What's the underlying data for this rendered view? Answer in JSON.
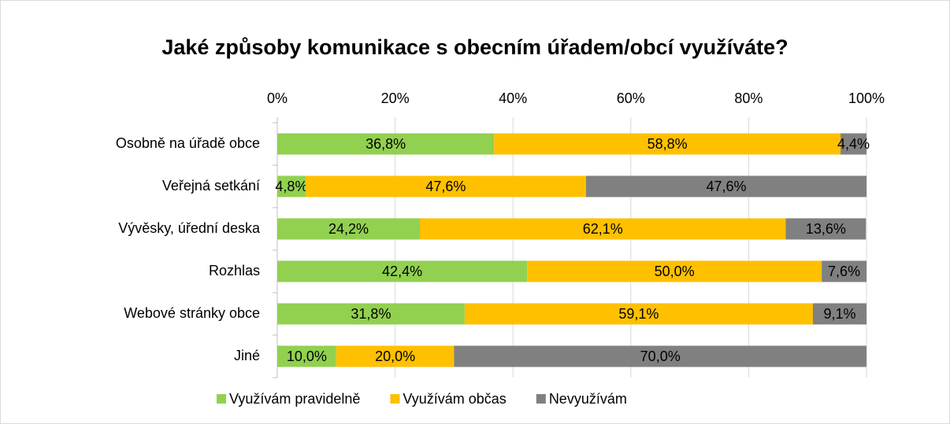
{
  "chart_data": {
    "type": "stacked_barh",
    "title": "Jaké způsoby komunikace s obecním úřadem/obcí využíváte?",
    "categories": [
      "Osobně na úřadě obce",
      "Veřejná setkání",
      "Vývěsky, úřední deska",
      "Rozhlas",
      "Webové stránky obce",
      "Jiné"
    ],
    "series": [
      {
        "name": "Využívám pravidelně",
        "color": "#92d050",
        "values": [
          36.8,
          4.8,
          24.2,
          42.4,
          31.8,
          10.0
        ],
        "value_labels": [
          "36,8%",
          "4,8%",
          "24,2%",
          "42,4%",
          "31,8%",
          "10,0%"
        ]
      },
      {
        "name": "Využívám občas",
        "color": "#ffc000",
        "values": [
          58.8,
          47.6,
          62.1,
          50.0,
          59.1,
          20.0
        ],
        "value_labels": [
          "58,8%",
          "47,6%",
          "62,1%",
          "50,0%",
          "59,1%",
          "20,0%"
        ]
      },
      {
        "name": "Nevyužívám",
        "color": "#808080",
        "values": [
          4.4,
          47.6,
          13.6,
          7.6,
          9.1,
          70.0
        ],
        "value_labels": [
          "4,4%",
          "47,6%",
          "13,6%",
          "7,6%",
          "9,1%",
          "70,0%"
        ]
      }
    ],
    "xlim": [
      0,
      100
    ],
    "xticks": [
      {
        "value": 0,
        "label": "0%"
      },
      {
        "value": 20,
        "label": "20%"
      },
      {
        "value": 40,
        "label": "40%"
      },
      {
        "value": 60,
        "label": "60%"
      },
      {
        "value": 80,
        "label": "80%"
      },
      {
        "value": 100,
        "label": "100%"
      }
    ],
    "grid": true,
    "legend": "bottom"
  }
}
